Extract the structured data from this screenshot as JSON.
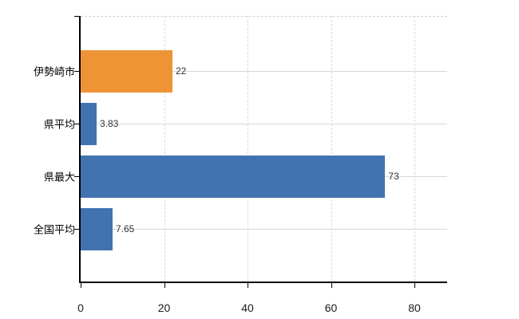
{
  "chart_data": {
    "type": "bar",
    "orientation": "horizontal",
    "title": "",
    "categories": [
      "伊勢崎市",
      "県平均",
      "県最大",
      "全国平均"
    ],
    "values": [
      22,
      3.83,
      73,
      7.65
    ],
    "value_labels": [
      "22",
      "3.83",
      "73",
      "7.65"
    ],
    "bar_colors": [
      "#EE9434",
      "#4273B1",
      "#4273B1",
      "#4273B1"
    ],
    "x_ticks": [
      0,
      20,
      40,
      60,
      80
    ],
    "x_tick_labels": [
      "0",
      "20",
      "40",
      "60",
      "80"
    ],
    "xlim": [
      0,
      87.8
    ],
    "grid": true,
    "legend": false
  },
  "colors": {
    "bar_highlight": "#EE9434",
    "bar_default": "#4273B1",
    "grid_h": "#D6D9D2",
    "grid_v": "#DBD8DC",
    "top_border": "#D3CED8",
    "axis": "#000000",
    "category_text": "#000000",
    "value_text": "#333333",
    "tick_text": "#1A1A1A",
    "background": "#FFFFFF"
  }
}
